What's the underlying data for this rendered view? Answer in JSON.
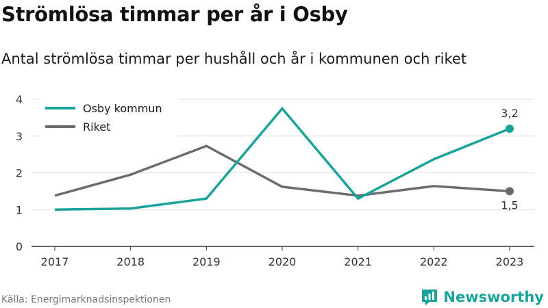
{
  "header": {
    "title": "Strömlösa timmar per år i Osby",
    "subtitle": "Antal strömlösa timmar per hushåll och år i kommunen och riket"
  },
  "footer": {
    "source": "Källa: Energimarknadsinspektionen",
    "brand": "Newsworthy"
  },
  "colors": {
    "osby": "#1aa39a",
    "riket": "#6b6b70",
    "grid": "#dddddd",
    "brand": "#1aa39a"
  },
  "chart_data": {
    "type": "line",
    "title": "Strömlösa timmar per år i Osby",
    "subtitle": "Antal strömlösa timmar per hushåll och år i kommunen och riket",
    "x": [
      "2017",
      "2018",
      "2019",
      "2020",
      "2021",
      "2022",
      "2023"
    ],
    "y_ticks": [
      "0",
      "1",
      "2",
      "3",
      "4"
    ],
    "ylim": [
      0,
      4
    ],
    "grid": "horizontal",
    "legend_position": "top-left",
    "series": [
      {
        "name": "Osby kommun",
        "values": [
          1.0,
          1.03,
          1.3,
          3.75,
          1.3,
          2.37,
          3.2
        ],
        "color": "#1aa39a",
        "end_label": "3,2"
      },
      {
        "name": "Riket",
        "values": [
          1.38,
          1.95,
          2.73,
          1.62,
          1.38,
          1.64,
          1.5
        ],
        "color": "#6b6b70",
        "end_label": "1,5"
      }
    ]
  }
}
